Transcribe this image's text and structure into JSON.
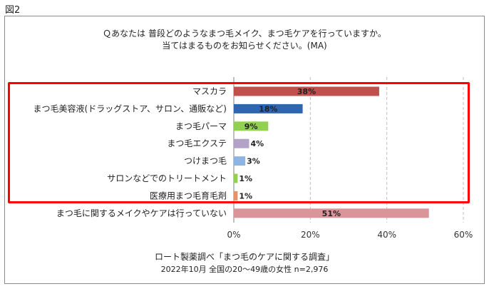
{
  "figure_label": "図2",
  "colors": {
    "red_bar": "#c0504d",
    "blue_bar": "#2e67b1",
    "green_bar": "#92d050",
    "purple_bar": "#b3a2c7",
    "gray_bar": "#8eb4e3",
    "pink_bar": "#d9959a",
    "highlight": "#ff0000",
    "grid": "#bfbfbf"
  },
  "chart_data": {
    "type": "bar",
    "orientation": "horizontal",
    "title": "Ｑあなたは 普段どのようなまつ毛メイク、まつ毛ケアを行っていますか。",
    "subtitle": "当てはまるものをお知らせください。(MA)",
    "categories": [
      "マスカラ",
      "まつ毛美容液(ドラッグストア、サロン、通販など)",
      "まつ毛パーマ",
      "まつ毛エクステ",
      "つけまつ毛",
      "サロンなどでのトリートメント",
      "医療用まつ毛育毛剤",
      "まつ毛に関するメイクやケアは行っていない"
    ],
    "values": [
      38,
      18,
      9,
      4,
      3,
      1,
      1,
      51
    ],
    "data_labels": [
      "38%",
      "18%",
      "9%",
      "4%",
      "3%",
      "1%",
      "1%",
      "51%"
    ],
    "bar_colors": [
      "#c0504d",
      "#2e67b1",
      "#92d050",
      "#b3a2c7",
      "#8eb4e3",
      "#92d050",
      "#e8906a",
      "#d9959a"
    ],
    "xlim": [
      0,
      60
    ],
    "ticks": [
      0,
      20,
      40,
      60
    ],
    "tick_labels": [
      "0%",
      "20%",
      "40%",
      "60%"
    ],
    "grid": true,
    "highlighted_range": [
      0,
      6
    ],
    "notes": [
      "ロート製薬調べ「まつ毛のケアに関する調査」",
      "2022年10月 全国の20～49歳の女性 n=2,976"
    ]
  }
}
